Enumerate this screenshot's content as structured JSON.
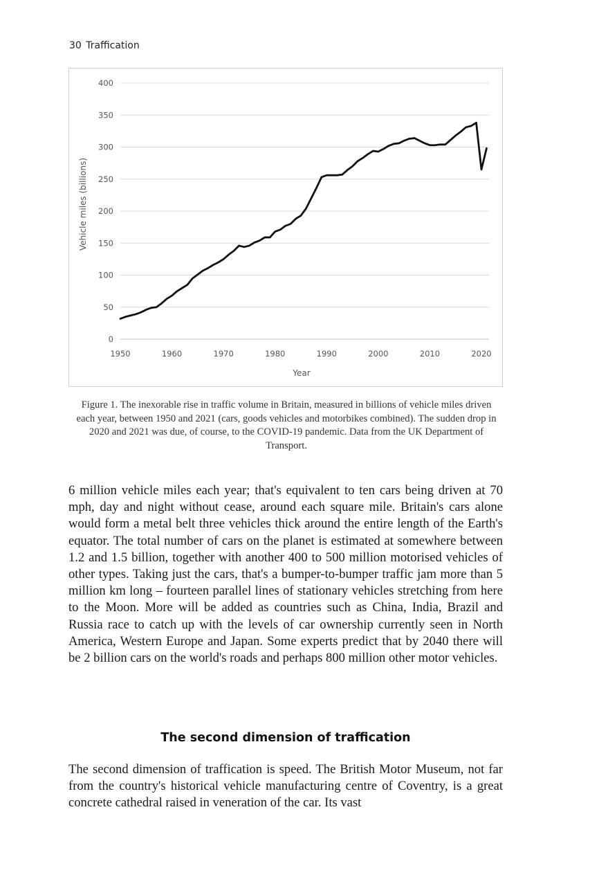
{
  "header": {
    "page_number": "30",
    "running_title": "Traffication"
  },
  "chart_data": {
    "type": "line",
    "title": "",
    "xlabel": "Year",
    "ylabel": "Vehicle miles (billions)",
    "xlim": [
      1950,
      2021
    ],
    "ylim": [
      0,
      400
    ],
    "x_ticks": [
      "1950",
      "1960",
      "1970",
      "1980",
      "1990",
      "2000",
      "2010",
      "2020"
    ],
    "y_ticks": [
      "0",
      "50",
      "100",
      "150",
      "200",
      "250",
      "300",
      "350",
      "400"
    ],
    "grid": "horizontal",
    "series": [
      {
        "x": [
          1950,
          1951,
          1952,
          1953,
          1954,
          1955,
          1956,
          1957,
          1958,
          1959,
          1960,
          1961,
          1962,
          1963,
          1964,
          1965,
          1966,
          1967,
          1968,
          1969,
          1970,
          1971,
          1972,
          1973,
          1974,
          1975,
          1976,
          1977,
          1978,
          1979,
          1980,
          1981,
          1982,
          1983,
          1984,
          1985,
          1986,
          1987,
          1988,
          1989,
          1990,
          1991,
          1992,
          1993,
          1994,
          1995,
          1996,
          1997,
          1998,
          1999,
          2000,
          2001,
          2002,
          2003,
          2004,
          2005,
          2006,
          2007,
          2008,
          2009,
          2010,
          2011,
          2012,
          2013,
          2014,
          2015,
          2016,
          2017,
          2018,
          2019,
          2020,
          2021
        ],
        "values": [
          32,
          35,
          37,
          39,
          42,
          46,
          49,
          50,
          56,
          63,
          68,
          75,
          80,
          85,
          95,
          101,
          107,
          111,
          116,
          120,
          125,
          132,
          138,
          146,
          144,
          146,
          151,
          154,
          159,
          159,
          168,
          171,
          177,
          180,
          188,
          193,
          204,
          220,
          236,
          253,
          256,
          256,
          256,
          257,
          264,
          270,
          278,
          283,
          289,
          294,
          293,
          297,
          302,
          305,
          306,
          310,
          313,
          314,
          310,
          306,
          303,
          303,
          304,
          304,
          311,
          318,
          324,
          331,
          333,
          338,
          265,
          298
        ]
      }
    ]
  },
  "figure_caption": "Figure 1. The inexorable rise in traffic volume in Britain, measured in billions of vehicle miles driven each year, between 1950 and 2021 (cars, goods vehicles and motorbikes combined). The sudden drop in 2020 and 2021 was due, of course, to the COVID-19 pandemic. Data from the UK Department of Transport.",
  "paragraph_1": "6 million vehicle miles each year; that's equivalent to ten cars being driven at 70 mph, day and night without cease, around each square mile. Britain's cars alone would form a metal belt three vehicles thick around the entire length of the Earth's equator. The total number of cars on the planet is estimated at somewhere between 1.2 and 1.5 billion, together with another 400 to 500 million motorised vehicles of other types. Taking just the cars, that's a bumper-to-bumper traffic jam more than 5 million km long – fourteen parallel lines of stationary vehicles stretching from here to the Moon. More will be added as countries such as China, India, Brazil and Russia race to catch up with the levels of car ownership currently seen in North America, Western Europe and Japan. Some experts predict that by 2040 there will be 2 billion cars on the world's roads and perhaps 800 million other motor vehicles.",
  "section_heading": "The second dimension of traffication",
  "paragraph_2": "The second dimension of traffication is speed. The British Motor Museum, not far from the country's historical vehicle manufacturing centre of Coventry, is a great concrete cathedral raised in veneration of the car. Its vast"
}
